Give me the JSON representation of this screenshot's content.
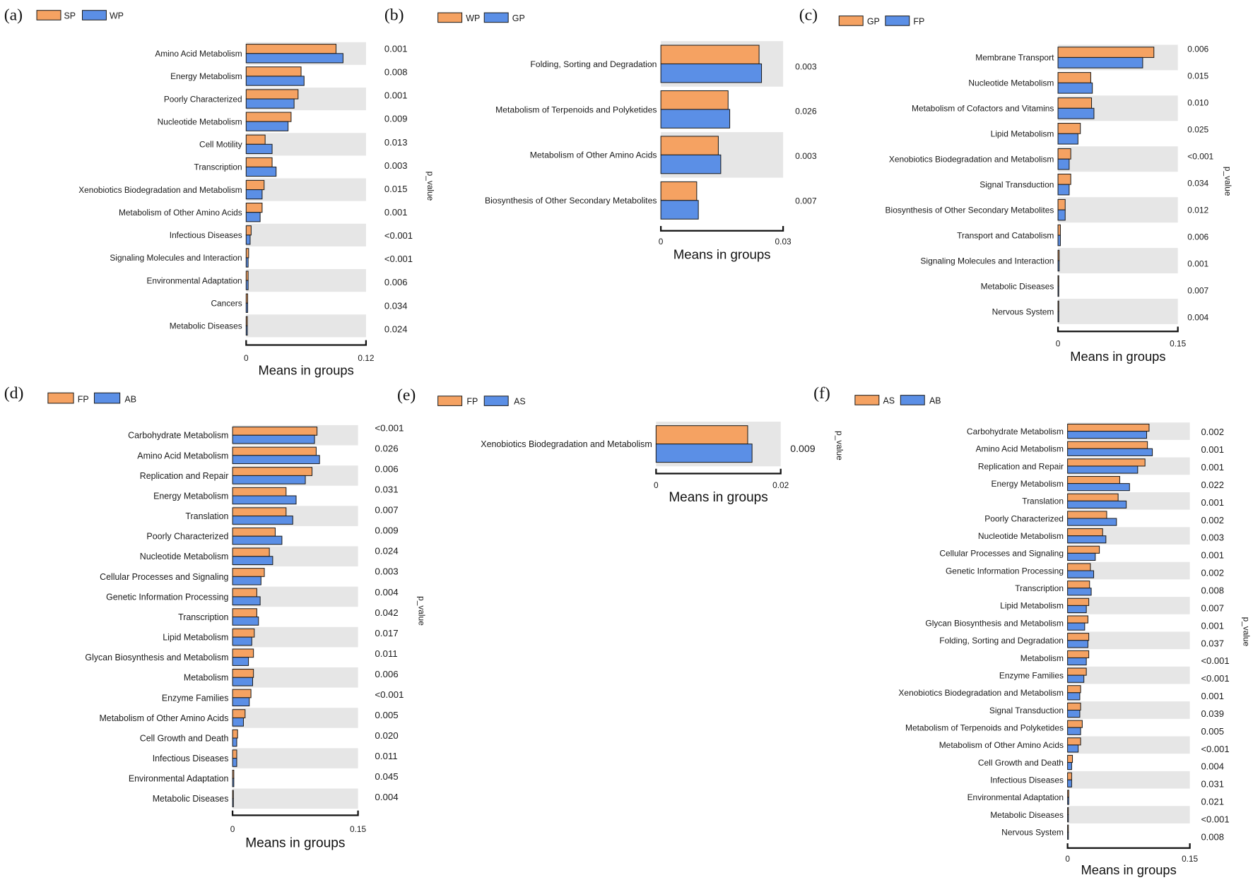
{
  "colors": {
    "series_1": "#F5A262",
    "series_2": "#5B8FE6",
    "band": "#E6E6E6"
  },
  "chart_data": [
    {
      "type": "bar",
      "panel": "(a)",
      "categories": [
        "Amino Acid Metabolism",
        "Energy Metabolism",
        "Poorly Characterized",
        "Nucleotide Metabolism",
        "Cell Motility",
        "Transcription",
        "Xenobiotics Biodegradation and Metabolism",
        "Metabolism of Other Amino Acids",
        "Infectious Diseases",
        "Signaling Molecules and Interaction",
        "Environmental Adaptation",
        "Cancers",
        "Metabolic Diseases"
      ],
      "series": [
        {
          "name": "SP",
          "values": [
            0.09,
            0.055,
            0.052,
            0.045,
            0.019,
            0.026,
            0.018,
            0.016,
            0.005,
            0.0025,
            0.002,
            0.0015,
            0.0012
          ]
        },
        {
          "name": "WP",
          "values": [
            0.097,
            0.058,
            0.048,
            0.042,
            0.026,
            0.03,
            0.016,
            0.014,
            0.004,
            0.002,
            0.002,
            0.0015,
            0.0012
          ]
        }
      ],
      "p_values": [
        "0.001",
        "0.008",
        "0.001",
        "0.009",
        "0.013",
        "0.003",
        "0.015",
        "0.001",
        "<0.001",
        "<0.001",
        "0.006",
        "0.034",
        "0.024"
      ],
      "p_label": "p_value",
      "xlabel": "Means in groups",
      "xlim": [
        0,
        0.12
      ],
      "xticks": [
        "0",
        "0.12"
      ]
    },
    {
      "type": "bar",
      "panel": "(b)",
      "categories": [
        "Folding, Sorting and Degradation",
        "Metabolism of Terpenoids and Polyketides",
        "Metabolism of Other Amino Acids",
        "Biosynthesis of Other Secondary Metabolites"
      ],
      "series": [
        {
          "name": "WP",
          "values": [
            0.0241,
            0.0165,
            0.0141,
            0.0088
          ]
        },
        {
          "name": "GP",
          "values": [
            0.0247,
            0.0169,
            0.0147,
            0.0092
          ]
        }
      ],
      "p_values": [
        "0.003",
        "0.026",
        "0.003",
        "0.007"
      ],
      "xlabel": "Means in groups",
      "xlim": [
        0,
        0.03
      ],
      "xticks": [
        "0",
        "0.03"
      ]
    },
    {
      "type": "bar",
      "panel": "(c)",
      "categories": [
        "Membrane Transport",
        "Nucleotide Metabolism",
        "Metabolism of Cofactors and Vitamins",
        "Lipid Metabolism",
        "Xenobiotics Biodegradation and Metabolism",
        "Signal Transduction",
        "Biosynthesis of Other Secondary Metabolites",
        "Transport and Catabolism",
        "Signaling Molecules and Interaction",
        "Metabolic Diseases",
        "Nervous System"
      ],
      "series": [
        {
          "name": "GP",
          "values": [
            0.12,
            0.041,
            0.042,
            0.028,
            0.016,
            0.016,
            0.009,
            0.003,
            0.0015,
            0.001,
            0.001
          ]
        },
        {
          "name": "FP",
          "values": [
            0.106,
            0.043,
            0.045,
            0.025,
            0.014,
            0.014,
            0.009,
            0.003,
            0.0015,
            0.001,
            0.001
          ]
        }
      ],
      "p_values": [
        "0.006",
        "0.015",
        "0.010",
        "0.025",
        "<0.001",
        "0.034",
        "0.012",
        "0.006",
        "0.001",
        "0.007",
        "0.004"
      ],
      "p_label": "p_value",
      "xlabel": "Means in groups",
      "xlim": [
        0,
        0.15
      ],
      "xticks": [
        "0",
        "0.15"
      ]
    },
    {
      "type": "bar",
      "panel": "(d)",
      "categories": [
        "Carbohydrate Metabolism",
        "Amino Acid Metabolism",
        "Replication and Repair",
        "Energy Metabolism",
        "Translation",
        "Poorly Characterized",
        "Nucleotide Metabolism",
        "Cellular Processes and Signaling",
        "Genetic Information Processing",
        "Transcription",
        "Lipid Metabolism",
        "Glycan Biosynthesis and Metabolism",
        "Metabolism",
        "Enzyme Families",
        "Metabolism of Other Amino Acids",
        "Cell Growth and Death",
        "Infectious Diseases",
        "Environmental Adaptation",
        "Metabolic Diseases"
      ],
      "series": [
        {
          "name": "FP",
          "values": [
            0.101,
            0.1,
            0.095,
            0.064,
            0.064,
            0.051,
            0.044,
            0.038,
            0.029,
            0.029,
            0.026,
            0.025,
            0.025,
            0.022,
            0.015,
            0.006,
            0.005,
            0.0015,
            0.001
          ]
        },
        {
          "name": "AB",
          "values": [
            0.098,
            0.104,
            0.087,
            0.076,
            0.072,
            0.059,
            0.048,
            0.034,
            0.033,
            0.031,
            0.023,
            0.019,
            0.024,
            0.02,
            0.013,
            0.005,
            0.005,
            0.0015,
            0.001
          ]
        }
      ],
      "p_values": [
        "<0.001",
        "0.026",
        "0.006",
        "0.031",
        "0.007",
        "0.009",
        "0.024",
        "0.003",
        "0.004",
        "0.042",
        "0.017",
        "0.011",
        "0.006",
        "<0.001",
        "0.005",
        "0.020",
        "0.011",
        "0.045",
        "0.004"
      ],
      "p_label": "p_value",
      "xlabel": "Means in groups",
      "xlim": [
        0,
        0.15
      ],
      "xticks": [
        "0",
        "0.15"
      ]
    },
    {
      "type": "bar",
      "panel": "(e)",
      "categories": [
        "Xenobiotics Biodegradation and Metabolism"
      ],
      "series": [
        {
          "name": "FP",
          "values": [
            0.0147
          ]
        },
        {
          "name": "AS",
          "values": [
            0.0154
          ]
        }
      ],
      "p_values": [
        "0.009"
      ],
      "p_label": "p_value",
      "xlabel": "Means in groups",
      "xlim": [
        0,
        0.02
      ],
      "xticks": [
        "0",
        "0.02"
      ]
    },
    {
      "type": "bar",
      "panel": "(f)",
      "categories": [
        "Carbohydrate Metabolism",
        "Amino Acid Metabolism",
        "Replication and Repair",
        "Energy Metabolism",
        "Translation",
        "Poorly Characterized",
        "Nucleotide Metabolism",
        "Cellular Processes and Signaling",
        "Genetic Information Processing",
        "Transcription",
        "Lipid Metabolism",
        "Glycan Biosynthesis and Metabolism",
        "Folding, Sorting and Degradation",
        "Metabolism",
        "Enzyme Families",
        "Xenobiotics Biodegradation and Metabolism",
        "Signal Transduction",
        "Metabolism of Terpenoids and Polyketides",
        "Metabolism of Other Amino Acids",
        "Cell Growth and Death",
        "Infectious Diseases",
        "Environmental Adaptation",
        "Metabolic Diseases",
        "Nervous System"
      ],
      "series": [
        {
          "name": "AS",
          "values": [
            0.1,
            0.098,
            0.095,
            0.064,
            0.062,
            0.048,
            0.043,
            0.039,
            0.028,
            0.027,
            0.026,
            0.025,
            0.026,
            0.026,
            0.023,
            0.016,
            0.016,
            0.018,
            0.016,
            0.006,
            0.005,
            0.0015,
            0.001,
            0.001
          ]
        },
        {
          "name": "AB",
          "values": [
            0.097,
            0.104,
            0.086,
            0.076,
            0.072,
            0.06,
            0.047,
            0.034,
            0.032,
            0.029,
            0.023,
            0.021,
            0.025,
            0.023,
            0.02,
            0.015,
            0.015,
            0.016,
            0.013,
            0.005,
            0.005,
            0.0015,
            0.001,
            0.001
          ]
        }
      ],
      "p_values": [
        "0.002",
        "0.001",
        "0.001",
        "0.022",
        "0.001",
        "0.002",
        "0.003",
        "0.001",
        "0.002",
        "0.008",
        "0.007",
        "0.001",
        "0.037",
        "<0.001",
        "<0.001",
        "0.001",
        "0.039",
        "0.005",
        "<0.001",
        "0.004",
        "0.031",
        "0.021",
        "<0.001",
        "0.008"
      ],
      "p_label": "p_value",
      "xlabel": "Means in groups",
      "xlim": [
        0,
        0.15
      ],
      "xticks": [
        "0",
        "0.15"
      ]
    }
  ]
}
